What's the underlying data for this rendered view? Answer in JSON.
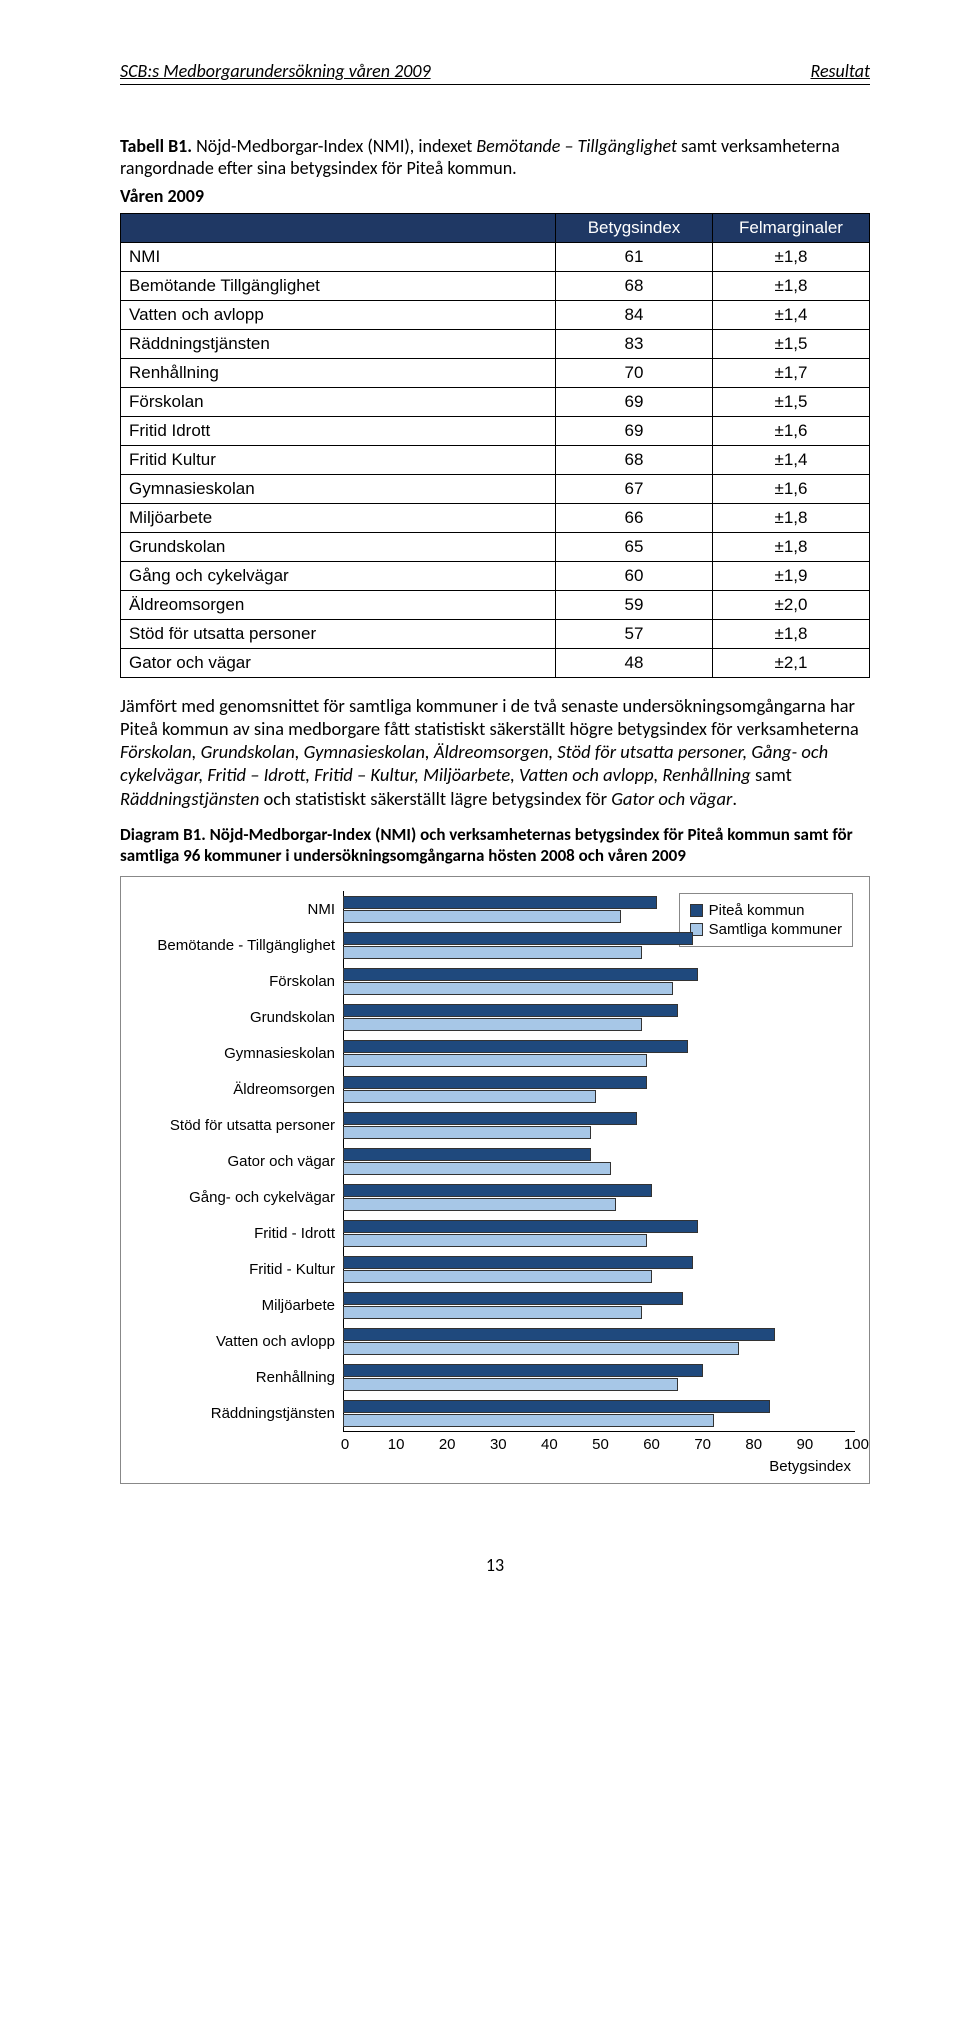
{
  "header": {
    "left": "SCB:s Medborgarundersökning våren 2009",
    "right": "Resultat"
  },
  "tabell_title": {
    "label": "Tabell B1.",
    "rest1": " Nöjd-Medborgar-Index (NMI), indexet ",
    "ital": "Bemötande – Tillgänglighet",
    "rest2": " samt verksamheterna rangordnade efter sina betygsindex för Piteå kommun."
  },
  "subhead": "Våren 2009",
  "table": {
    "header_col2": "Betygsindex",
    "header_col3": "Felmarginaler",
    "rows": [
      {
        "label": "NMI",
        "v": "61",
        "e": "±1,8"
      },
      {
        "label": "Bemötande Tillgänglighet",
        "v": "68",
        "e": "±1,8"
      },
      {
        "label": "Vatten och avlopp",
        "v": "84",
        "e": "±1,4"
      },
      {
        "label": "Räddningstjänsten",
        "v": "83",
        "e": "±1,5"
      },
      {
        "label": "Renhållning",
        "v": "70",
        "e": "±1,7"
      },
      {
        "label": "Förskolan",
        "v": "69",
        "e": "±1,5"
      },
      {
        "label": "Fritid   Idrott",
        "v": "69",
        "e": "±1,6"
      },
      {
        "label": "Fritid   Kultur",
        "v": "68",
        "e": "±1,4"
      },
      {
        "label": "Gymnasieskolan",
        "v": "67",
        "e": "±1,6"
      },
      {
        "label": "Miljöarbete",
        "v": "66",
        "e": "±1,8"
      },
      {
        "label": "Grundskolan",
        "v": "65",
        "e": "±1,8"
      },
      {
        "label": "Gång  och cykelvägar",
        "v": "60",
        "e": "±1,9"
      },
      {
        "label": "Äldreomsorgen",
        "v": "59",
        "e": "±2,0"
      },
      {
        "label": "Stöd för utsatta personer",
        "v": "57",
        "e": "±1,8"
      },
      {
        "label": "Gator och vägar",
        "v": "48",
        "e": "±2,1"
      }
    ]
  },
  "paragraph": {
    "p1": "Jämfört med genomsnittet för samtliga kommuner i de två senaste undersökningsomgångarna har Piteå kommun av sina medborgare fått statistiskt säkerställt högre betygsindex för verksamheterna ",
    "i1": "Förskolan, Grundskolan, Gymnasieskolan, Äldreomsorgen, Stöd för utsatta personer, Gång- och cykelvägar, Fritid – Idrott, Fritid – Kultur, Miljöarbete, Vatten och avlopp, Renhållning",
    "p2": " samt ",
    "i2": "Räddningstjänsten",
    "p3": " och statistiskt säkerställt lägre betygsindex för ",
    "i3": "Gator och vägar",
    "p4": "."
  },
  "diagram_title": "Diagram B1. Nöjd-Medborgar-Index (NMI) och verksamheternas betygsindex för Piteå kommun samt för samtliga 96 kommuner i undersökningsomgångarna hösten 2008 och våren 2009",
  "chart": {
    "xmax": 100,
    "xticks": [
      "0",
      "10",
      "20",
      "30",
      "40",
      "50",
      "60",
      "70",
      "80",
      "90",
      "100"
    ],
    "xlabel": "Betygsindex",
    "legend": {
      "a": "Piteå kommun",
      "b": "Samtliga kommuner"
    },
    "colors": {
      "dark": "#1f497d",
      "light": "#a7c7e7",
      "border": "#888888"
    },
    "series": [
      {
        "label": "NMI",
        "a": 61,
        "b": 54
      },
      {
        "label": "Bemötande - Tillgänglighet",
        "a": 68,
        "b": 58
      },
      {
        "label": "Förskolan",
        "a": 69,
        "b": 64
      },
      {
        "label": "Grundskolan",
        "a": 65,
        "b": 58
      },
      {
        "label": "Gymnasieskolan",
        "a": 67,
        "b": 59
      },
      {
        "label": "Äldreomsorgen",
        "a": 59,
        "b": 49
      },
      {
        "label": "Stöd för utsatta personer",
        "a": 57,
        "b": 48
      },
      {
        "label": "Gator och vägar",
        "a": 48,
        "b": 52
      },
      {
        "label": "Gång- och cykelvägar",
        "a": 60,
        "b": 53
      },
      {
        "label": "Fritid - Idrott",
        "a": 69,
        "b": 59
      },
      {
        "label": "Fritid - Kultur",
        "a": 68,
        "b": 60
      },
      {
        "label": "Miljöarbete",
        "a": 66,
        "b": 58
      },
      {
        "label": "Vatten och avlopp",
        "a": 84,
        "b": 77
      },
      {
        "label": "Renhållning",
        "a": 70,
        "b": 65
      },
      {
        "label": "Räddningstjänsten",
        "a": 83,
        "b": 72
      }
    ]
  },
  "pagenum": "13"
}
